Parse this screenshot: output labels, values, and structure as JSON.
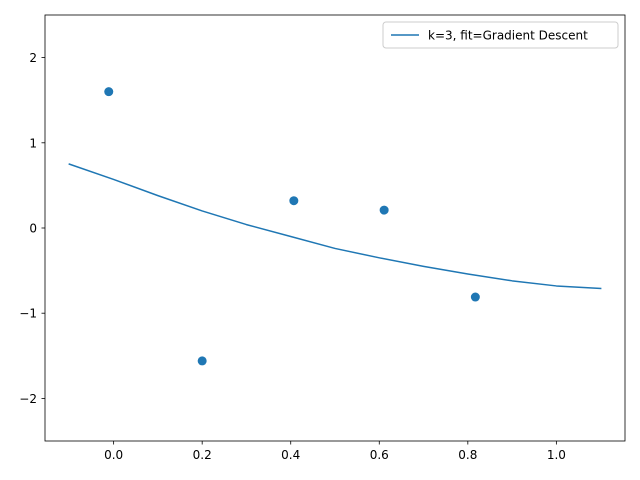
{
  "chart_data": {
    "type": "scatter",
    "title": "",
    "xlabel": "",
    "ylabel": "",
    "xlim": [
      -0.155,
      1.155
    ],
    "ylim": [
      -2.5,
      2.5
    ],
    "x_ticks": [
      0.0,
      0.2,
      0.4,
      0.6,
      0.8,
      1.0
    ],
    "x_tick_labels": [
      "0.0",
      "0.2",
      "0.4",
      "0.6",
      "0.8",
      "1.0"
    ],
    "y_ticks": [
      -2,
      -1,
      0,
      1,
      2
    ],
    "y_tick_labels": [
      "−2",
      "−1",
      "0",
      "1",
      "2"
    ],
    "grid": false,
    "legend_position": "top-right",
    "color": "#1f77b4",
    "series": [
      {
        "kind": "scatter",
        "x": [
          -0.011,
          0.2,
          0.407,
          0.611,
          0.817
        ],
        "y": [
          1.6,
          -1.56,
          0.32,
          0.21,
          -0.81
        ]
      },
      {
        "kind": "line",
        "name": "k=3, fit=Gradient Descent",
        "x": [
          -0.1,
          0.0,
          0.1,
          0.2,
          0.3,
          0.4,
          0.5,
          0.6,
          0.7,
          0.8,
          0.9,
          1.0,
          1.1
        ],
        "y": [
          0.75,
          0.57,
          0.38,
          0.2,
          0.04,
          -0.1,
          -0.24,
          -0.35,
          -0.45,
          -0.54,
          -0.62,
          -0.68,
          -0.71
        ]
      }
    ]
  }
}
